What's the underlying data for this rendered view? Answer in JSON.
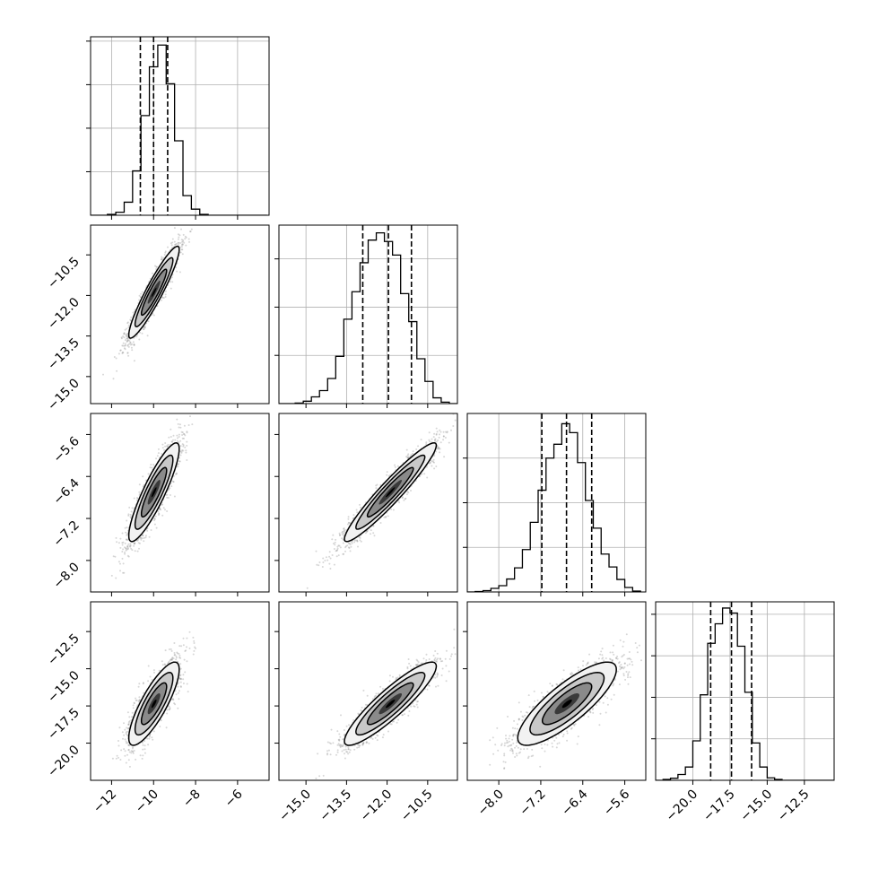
{
  "chart_data": {
    "type": "corner",
    "grid": true,
    "colors": {
      "line": "#000000",
      "grid": "#b0b0b0",
      "samples": "#8c8c8c"
    },
    "parameters": [
      {
        "range": [
          -13,
          -4.5
        ],
        "ticks": [
          -12,
          -10,
          -8,
          -6
        ],
        "tick_labels": [
          "−12",
          "−10",
          "−8",
          "−6"
        ]
      },
      {
        "range": [
          -16,
          -9.4
        ],
        "ticks": [
          -15.0,
          -13.5,
          -12.0,
          -10.5
        ],
        "tick_labels": [
          "−15.0",
          "−13.5",
          "−12.0",
          "−10.5"
        ]
      },
      {
        "range": [
          -8.6,
          -5.2
        ],
        "ticks": [
          -8.0,
          -7.2,
          -6.4,
          -5.6
        ],
        "tick_labels": [
          "−8.0",
          "−7.2",
          "−6.4",
          "−5.6"
        ]
      },
      {
        "range": [
          -22.5,
          -10.5
        ],
        "ticks": [
          -20.0,
          -17.5,
          -15.0,
          -12.5
        ],
        "tick_labels": [
          "−20.0",
          "−17.5",
          "−15.0",
          "−12.5"
        ]
      }
    ],
    "histograms": [
      {
        "edges": [
          -13.0,
          -12.6,
          -12.2,
          -11.8,
          -11.4,
          -11.0,
          -10.6,
          -10.2,
          -9.8,
          -9.4,
          -9.0,
          -8.6,
          -8.2,
          -7.8,
          -7.4,
          -7.0,
          -6.6,
          -6.2,
          -5.8,
          -5.4,
          -5.0,
          -4.6
        ],
        "counts": [
          0,
          0,
          2,
          7,
          30,
          102,
          229,
          341,
          391,
          302,
          171,
          45,
          14,
          2,
          0,
          0,
          0,
          0,
          0,
          0,
          0
        ],
        "quantiles": [
          -10.63,
          -10.0,
          -9.33
        ],
        "ylim": [
          0,
          410
        ]
      },
      {
        "edges": [
          -16.0,
          -15.7,
          -15.4,
          -15.1,
          -14.8,
          -14.5,
          -14.2,
          -13.9,
          -13.6,
          -13.3,
          -13.0,
          -12.7,
          -12.4,
          -12.1,
          -11.8,
          -11.5,
          -11.2,
          -10.9,
          -10.6,
          -10.3,
          -10.0,
          -9.7,
          -9.4
        ],
        "counts": [
          0,
          0,
          1,
          5,
          14,
          27,
          52,
          98,
          175,
          232,
          292,
          339,
          354,
          336,
          308,
          228,
          170,
          93,
          46,
          12,
          3,
          0
        ],
        "quantiles": [
          -12.9,
          -11.95,
          -11.1
        ],
        "ylim": [
          0,
          370
        ]
      },
      {
        "edges": [
          -8.6,
          -8.45,
          -8.3,
          -8.15,
          -8.0,
          -7.85,
          -7.7,
          -7.55,
          -7.4,
          -7.25,
          -7.1,
          -6.95,
          -6.8,
          -6.65,
          -6.5,
          -6.35,
          -6.2,
          -6.05,
          -5.9,
          -5.75,
          -5.6,
          -5.45,
          -5.3
        ],
        "counts": [
          0,
          1,
          3,
          8,
          14,
          29,
          54,
          95,
          156,
          228,
          300,
          331,
          377,
          357,
          290,
          205,
          143,
          85,
          56,
          28,
          10,
          2
        ],
        "quantiles": [
          -7.18,
          -6.71,
          -6.23
        ],
        "ylim": [
          0,
          400
        ]
      },
      {
        "edges": [
          -22.5,
          -22.0,
          -21.5,
          -21.0,
          -20.5,
          -20.0,
          -19.5,
          -19.0,
          -18.5,
          -18.0,
          -17.5,
          -17.0,
          -16.5,
          -16.0,
          -15.5,
          -15.0,
          -14.5,
          -14.0,
          -13.5,
          -13.0,
          -12.5,
          -12.0,
          -11.5,
          -11.0,
          -10.5
        ],
        "counts": [
          0,
          2,
          5,
          14,
          32,
          95,
          206,
          330,
          377,
          415,
          403,
          323,
          212,
          90,
          32,
          6,
          2,
          0,
          0,
          0,
          0,
          0,
          0,
          0
        ],
        "quantiles": [
          -18.8,
          -17.4,
          -16.05
        ],
        "ylim": [
          0,
          430
        ]
      }
    ],
    "pairs": [
      {
        "row": 1,
        "col": 0,
        "mean": [
          -9.98,
          -11.88
        ],
        "sd": [
          0.6,
          0.85
        ],
        "rho": 0.93
      },
      {
        "row": 2,
        "col": 0,
        "mean": [
          -9.98,
          -6.7
        ],
        "sd": [
          0.6,
          0.47
        ],
        "rho": 0.88
      },
      {
        "row": 2,
        "col": 1,
        "mean": [
          -11.88,
          -6.7
        ],
        "sd": [
          0.85,
          0.47
        ],
        "rho": 0.95
      },
      {
        "row": 3,
        "col": 0,
        "mean": [
          -9.98,
          -17.35
        ],
        "sd": [
          0.6,
          1.4
        ],
        "rho": 0.82
      },
      {
        "row": 3,
        "col": 1,
        "mean": [
          -11.88,
          -17.35
        ],
        "sd": [
          0.85,
          1.4
        ],
        "rho": 0.9
      },
      {
        "row": 3,
        "col": 2,
        "mean": [
          -6.7,
          -17.35
        ],
        "sd": [
          0.47,
          1.4
        ],
        "rho": 0.82
      }
    ]
  }
}
